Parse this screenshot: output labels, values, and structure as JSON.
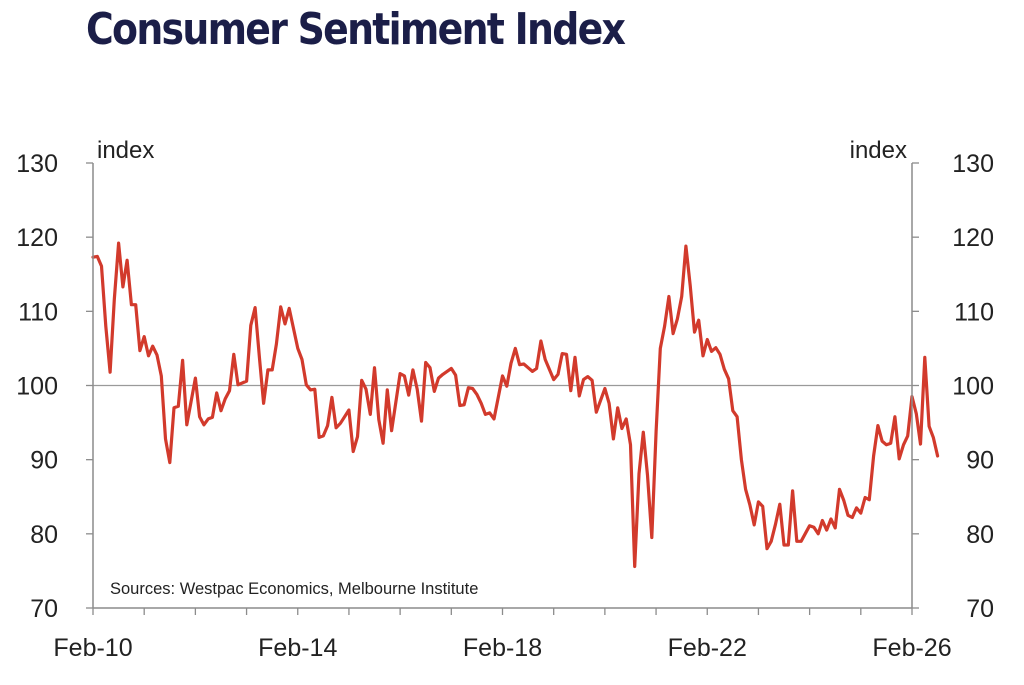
{
  "colors": {
    "title": "#1b1e48",
    "line": "#d23a2c",
    "axis": "#8c8c8c",
    "reference": "#9a9a9a",
    "text": "#222222"
  },
  "chart_data": {
    "type": "line",
    "title": "Consumer Sentiment Index",
    "ylabel_left": "index",
    "ylabel_right": "index",
    "note": "Sources: Westpac Economics, Melbourne Institute",
    "ylim": [
      70,
      130
    ],
    "yticks": [
      "130",
      "120",
      "110",
      "100",
      "90",
      "80",
      "70"
    ],
    "xticks": [
      "Feb-10",
      "Feb-14",
      "Feb-18",
      "Feb-22",
      "Feb-26"
    ],
    "xlim": [
      "2010-02",
      "2026-02"
    ],
    "reference_line": 100,
    "grid": false,
    "series": [
      {
        "values": [
          [
            "2010-02",
            117.3
          ],
          [
            "2010-03",
            117.4
          ],
          [
            "2010-04",
            116.1
          ],
          [
            "2010-05",
            108.0
          ],
          [
            "2010-06",
            101.8
          ],
          [
            "2010-07",
            111.6
          ],
          [
            "2010-08",
            119.2
          ],
          [
            "2010-09",
            113.3
          ],
          [
            "2010-10",
            116.9
          ],
          [
            "2010-11",
            110.9
          ],
          [
            "2010-12",
            110.9
          ],
          [
            "2011-01",
            104.7
          ],
          [
            "2011-02",
            106.6
          ],
          [
            "2011-03",
            104.0
          ],
          [
            "2011-04",
            105.3
          ],
          [
            "2011-05",
            104.1
          ],
          [
            "2011-06",
            101.3
          ],
          [
            "2011-07",
            92.8
          ],
          [
            "2011-08",
            89.6
          ],
          [
            "2011-09",
            97.0
          ],
          [
            "2011-10",
            97.2
          ],
          [
            "2011-11",
            103.4
          ],
          [
            "2011-12",
            94.7
          ],
          [
            "2012-02",
            101.0
          ],
          [
            "2012-03",
            95.8
          ],
          [
            "2012-04",
            94.7
          ],
          [
            "2012-05",
            95.5
          ],
          [
            "2012-06",
            95.7
          ],
          [
            "2012-07",
            99.0
          ],
          [
            "2012-08",
            96.6
          ],
          [
            "2012-09",
            98.2
          ],
          [
            "2012-10",
            99.3
          ],
          [
            "2012-11",
            104.2
          ],
          [
            "2012-12",
            100.1
          ],
          [
            "2013-02",
            100.6
          ],
          [
            "2013-03",
            108.1
          ],
          [
            "2013-04",
            110.5
          ],
          [
            "2013-05",
            103.8
          ],
          [
            "2013-06",
            97.6
          ],
          [
            "2013-07",
            102.1
          ],
          [
            "2013-08",
            102.1
          ],
          [
            "2013-09",
            105.6
          ],
          [
            "2013-10",
            110.6
          ],
          [
            "2013-11",
            108.3
          ],
          [
            "2013-12",
            110.4
          ],
          [
            "2014-02",
            105.0
          ],
          [
            "2014-03",
            103.5
          ],
          [
            "2014-04",
            100.1
          ],
          [
            "2014-05",
            99.4
          ],
          [
            "2014-06",
            99.5
          ],
          [
            "2014-07",
            93.0
          ],
          [
            "2014-08",
            93.2
          ],
          [
            "2014-09",
            94.6
          ],
          [
            "2014-10",
            98.4
          ],
          [
            "2014-11",
            94.3
          ],
          [
            "2014-12",
            94.9
          ],
          [
            "2015-02",
            96.7
          ],
          [
            "2015-03",
            91.1
          ],
          [
            "2015-04",
            93.1
          ],
          [
            "2015-05",
            100.7
          ],
          [
            "2015-06",
            99.5
          ],
          [
            "2015-07",
            96.1
          ],
          [
            "2015-08",
            102.4
          ],
          [
            "2015-09",
            95.4
          ],
          [
            "2015-10",
            92.2
          ],
          [
            "2015-11",
            99.4
          ],
          [
            "2015-12",
            93.9
          ],
          [
            "2016-02",
            101.6
          ],
          [
            "2016-03",
            101.3
          ],
          [
            "2016-04",
            98.7
          ],
          [
            "2016-05",
            102.1
          ],
          [
            "2016-06",
            99.5
          ],
          [
            "2016-07",
            95.2
          ],
          [
            "2016-08",
            103.1
          ],
          [
            "2016-09",
            102.4
          ],
          [
            "2016-10",
            99.2
          ],
          [
            "2016-11",
            101.0
          ],
          [
            "2016-12",
            101.5
          ],
          [
            "2017-02",
            102.3
          ],
          [
            "2017-03",
            101.4
          ],
          [
            "2017-04",
            97.3
          ],
          [
            "2017-05",
            97.4
          ],
          [
            "2017-06",
            99.7
          ],
          [
            "2017-07",
            99.6
          ],
          [
            "2017-08",
            98.8
          ],
          [
            "2017-09",
            97.6
          ],
          [
            "2017-10",
            96.1
          ],
          [
            "2017-11",
            96.3
          ],
          [
            "2017-12",
            95.5
          ],
          [
            "2018-02",
            101.3
          ],
          [
            "2018-03",
            99.9
          ],
          [
            "2018-04",
            103.0
          ],
          [
            "2018-05",
            105.0
          ],
          [
            "2018-06",
            102.8
          ],
          [
            "2018-07",
            102.9
          ],
          [
            "2018-08",
            102.4
          ],
          [
            "2018-09",
            101.9
          ],
          [
            "2018-10",
            102.3
          ],
          [
            "2018-11",
            106.0
          ],
          [
            "2018-12",
            103.5
          ],
          [
            "2019-02",
            100.8
          ],
          [
            "2019-03",
            101.5
          ],
          [
            "2019-04",
            104.3
          ],
          [
            "2019-05",
            104.2
          ],
          [
            "2019-06",
            99.3
          ],
          [
            "2019-07",
            103.8
          ],
          [
            "2019-08",
            98.6
          ],
          [
            "2019-09",
            100.8
          ],
          [
            "2019-10",
            101.2
          ],
          [
            "2019-11",
            100.7
          ],
          [
            "2019-12",
            96.4
          ],
          [
            "2020-02",
            99.6
          ],
          [
            "2020-03",
            97.6
          ],
          [
            "2020-04",
            92.8
          ],
          [
            "2020-05",
            97.0
          ],
          [
            "2020-06",
            94.2
          ],
          [
            "2020-07",
            95.5
          ],
          [
            "2020-08",
            92.0
          ],
          [
            "2020-09",
            75.6
          ],
          [
            "2020-10",
            88.1
          ],
          [
            "2020-11",
            93.7
          ],
          [
            "2020-12",
            87.9
          ],
          [
            "2021-01",
            79.5
          ],
          [
            "2021-02",
            93.8
          ],
          [
            "2021-03",
            105.0
          ],
          [
            "2021-04",
            108.0
          ],
          [
            "2021-05",
            112.0
          ],
          [
            "2021-06",
            107.0
          ],
          [
            "2021-07",
            109.0
          ],
          [
            "2021-08",
            112.0
          ],
          [
            "2021-09",
            118.8
          ],
          [
            "2021-10",
            113.5
          ],
          [
            "2021-11",
            107.2
          ],
          [
            "2021-12",
            108.8
          ],
          [
            "2022-01",
            104.0
          ],
          [
            "2022-02",
            106.2
          ],
          [
            "2022-03",
            104.6
          ],
          [
            "2022-04",
            105.1
          ],
          [
            "2022-05",
            104.2
          ],
          [
            "2022-06",
            102.2
          ],
          [
            "2022-07",
            100.9
          ],
          [
            "2022-08",
            96.6
          ],
          [
            "2022-09",
            95.8
          ],
          [
            "2022-10",
            90.0
          ],
          [
            "2022-11",
            86.0
          ],
          [
            "2022-12",
            83.9
          ],
          [
            "2023-01",
            81.2
          ],
          [
            "2023-02",
            84.3
          ],
          [
            "2023-03",
            83.7
          ],
          [
            "2023-04",
            78.0
          ],
          [
            "2023-05",
            79.0
          ],
          [
            "2023-06",
            81.3
          ],
          [
            "2023-07",
            84.0
          ],
          [
            "2023-08",
            78.5
          ],
          [
            "2023-09",
            78.5
          ],
          [
            "2023-10",
            85.8
          ],
          [
            "2023-11",
            79.0
          ],
          [
            "2023-12",
            79.0
          ],
          [
            "2024-02",
            81.1
          ],
          [
            "2024-03",
            80.9
          ],
          [
            "2024-04",
            80.0
          ],
          [
            "2024-05",
            81.8
          ],
          [
            "2024-06",
            80.5
          ],
          [
            "2024-07",
            82.0
          ],
          [
            "2024-08",
            80.8
          ],
          [
            "2024-09",
            86.0
          ],
          [
            "2024-10",
            84.5
          ],
          [
            "2024-11",
            82.5
          ],
          [
            "2024-12",
            82.2
          ],
          [
            "2025-01",
            83.5
          ],
          [
            "2025-02",
            82.8
          ],
          [
            "2025-03",
            84.9
          ],
          [
            "2025-04",
            84.6
          ],
          [
            "2025-05",
            90.5
          ],
          [
            "2025-06",
            94.6
          ],
          [
            "2025-07",
            92.5
          ],
          [
            "2025-08",
            92.0
          ],
          [
            "2025-09",
            92.2
          ],
          [
            "2025-10",
            95.8
          ],
          [
            "2025-11",
            90.1
          ],
          [
            "2025-12",
            92.0
          ],
          [
            "2026-01",
            93.2
          ],
          [
            "2026-02",
            98.5
          ],
          [
            "2026-03",
            96.2
          ],
          [
            "2026-04",
            92.1
          ],
          [
            "2026-05",
            103.8
          ],
          [
            "2026-06",
            94.5
          ],
          [
            "2026-07",
            93.0
          ],
          [
            "2026-08",
            90.5
          ]
        ]
      }
    ]
  }
}
